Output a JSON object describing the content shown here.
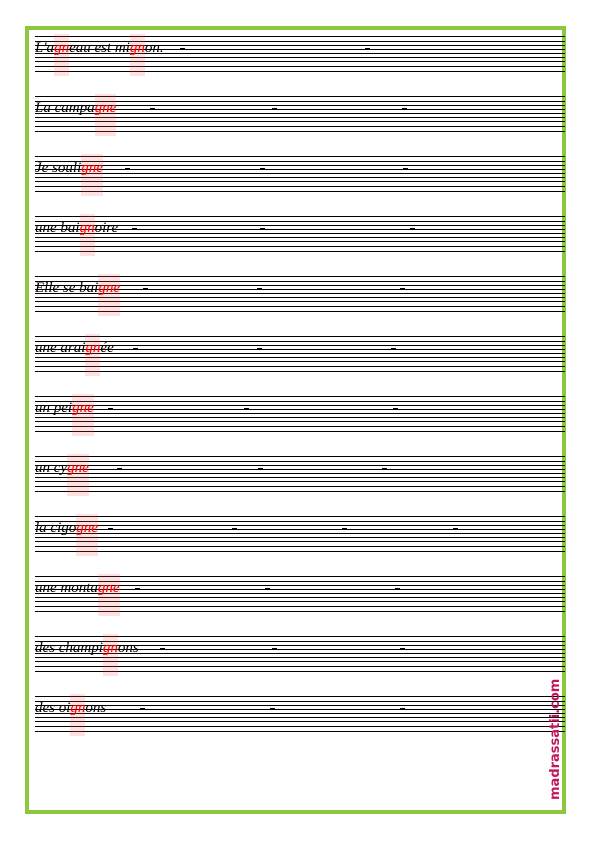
{
  "rows": [
    {
      "parts": [
        "L'a",
        "gn",
        "eau est mi",
        "gn",
        "on."
      ]
    },
    {
      "parts": [
        "La campa",
        "gne"
      ]
    },
    {
      "parts": [
        "Je souli",
        "gne"
      ]
    },
    {
      "parts": [
        "une bai",
        "gn",
        "oire"
      ]
    },
    {
      "parts": [
        "Elle se bai",
        "gne"
      ]
    },
    {
      "parts": [
        "une arai",
        "gn",
        "ée"
      ]
    },
    {
      "parts": [
        "un pei",
        "gne"
      ]
    },
    {
      "parts": [
        "un cy",
        "gne"
      ]
    },
    {
      "parts": [
        "la cigo",
        "gne"
      ]
    },
    {
      "parts": [
        "une monta",
        "gne"
      ]
    },
    {
      "parts": [
        "des champi",
        "gn",
        "ons"
      ]
    },
    {
      "parts": [
        "des oi",
        "gn",
        "ons"
      ]
    }
  ],
  "footer": {
    "site": "madrassatii.com"
  }
}
